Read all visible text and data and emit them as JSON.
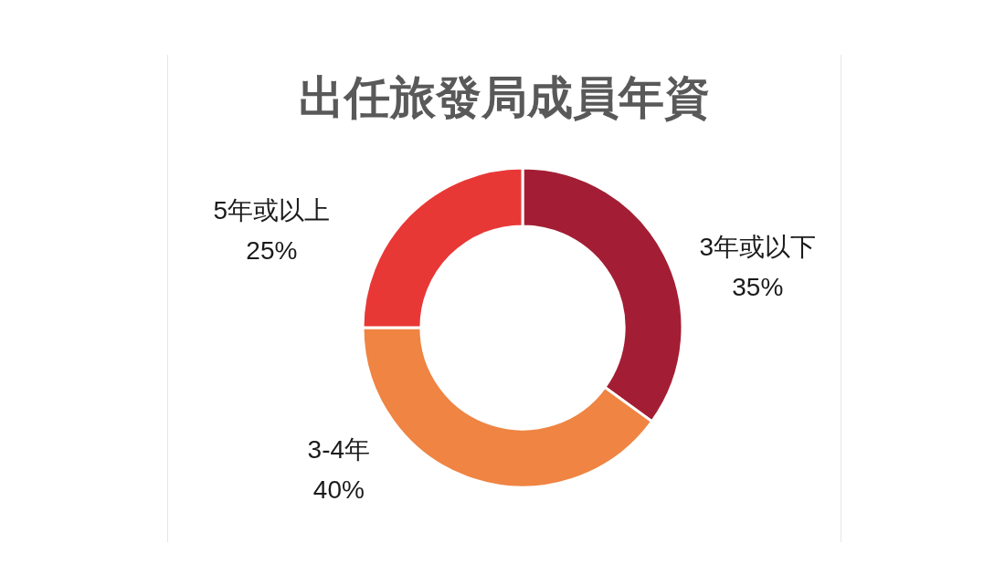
{
  "chart_data": {
    "type": "donut",
    "title": "出任旅發局成員年資",
    "categories": [
      "3年或以下",
      "3-4年",
      "5年或以上"
    ],
    "values": [
      35,
      40,
      25
    ],
    "colors": [
      "#a31e34",
      "#ef8443",
      "#e83836"
    ],
    "value_labels": [
      "35%",
      "40%",
      "25%"
    ]
  }
}
